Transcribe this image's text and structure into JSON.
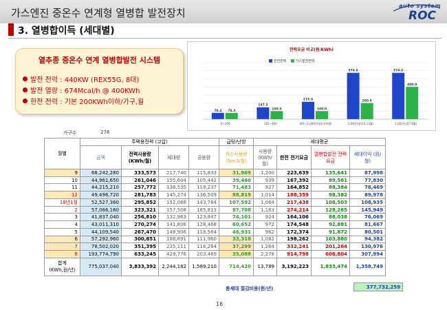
{
  "header": {
    "title": "가스엔진 중온수 연계형 열병합 발전장치",
    "logo_arc": "auto system",
    "logo_text": "ROC",
    "subtitle": "3. 열병합이득 (세대별)"
  },
  "info_box": {
    "title": "열추종 중온수 연계 열병합발전 시스템",
    "lines": [
      "발전 전력 : 440KW (REX55G, 8대)",
      "발전 열량 : 674Mcal/h @ 400KWh",
      "한전 전력 : 기본 200KWh이하/가구,월"
    ]
  },
  "chart_data": {
    "type": "bar",
    "title": "전력요금 비교(원/KWh)",
    "categories": [
      "0~200",
      "201~400",
      "401~1,000(이상)(기타형)",
      "1,001이상(12,12월)",
      "1,001이상(7,8월)"
    ],
    "series": [
      {
        "name": "한전전력",
        "values": [
          78.3,
          147.3,
          215.6,
          574.6,
          574.6
        ],
        "color": "#1f45c8"
      },
      {
        "name": "가스발전전력",
        "values": [
          78.3,
          100.0,
          100.0,
          200.0,
          400.0
        ],
        "color": "#2bb34a"
      }
    ],
    "ylim": [
      0,
      700
    ]
  },
  "table": {
    "households_label": "가구수",
    "households_value": "278",
    "headers": {
      "month": "월별",
      "residential": "주택용전력 (고압)",
      "heating": "급탕/난방",
      "avg": "세대평균",
      "amount": "금액",
      "usage": "전력사용량 (KWh/월)",
      "unit": "세대량",
      "common": "공용량",
      "gas": "가스사용량 (Nm3/월)",
      "use": "사용량 (KWh/월)",
      "kepco": "한전 전기요금",
      "chp": "열병합발전 전력요금",
      "benefit": "세대이익 (원/월)"
    },
    "rows": [
      {
        "m": "9",
        "amt": "68,242,280",
        "use": "333,573",
        "hh": "217,740",
        "com": "115,833",
        "gas": "31,969",
        "avg": "1,200",
        "kepco": "223,639",
        "chp": "135,641",
        "ben": "87,998",
        "hl": true
      },
      {
        "m": "10",
        "amt": "44,961,650",
        "use": "261,046",
        "hh": "155,604",
        "com": "105,442",
        "gas": "39,460",
        "avg": "939",
        "kepco": "167,392",
        "chp": "89,561",
        "ben": "77,830",
        "hl": false
      },
      {
        "m": "11",
        "amt": "44,215,210",
        "use": "257,772",
        "hh": "138,535",
        "com": "119,237",
        "gas": "71,483",
        "avg": "927",
        "kepco": "164,852",
        "chp": "88,384",
        "ben": "76,469",
        "hl": false
      },
      {
        "m": "12",
        "amt": "49,496,720",
        "use": "281,783",
        "hh": "145,274",
        "com": "136,509",
        "gas": "88,819",
        "avg": "1,014",
        "kepco": "188,359",
        "chp": "98,382",
        "ben": "89,978",
        "hl": true
      },
      {
        "m": "18년1월",
        "amt": "52,527,360",
        "use": "295,852",
        "hh": "152,068",
        "com": "143,784",
        "gas": "107,592",
        "avg": "1,064",
        "kepco": "217,438",
        "chp": "108,503",
        "ben": "108,935",
        "hl": false
      },
      {
        "m": "2",
        "amt": "57,066,160",
        "use": "323,321",
        "hh": "157,508",
        "com": "165,813",
        "gas": "87,708",
        "avg": "1,163",
        "kepco": "274,214",
        "chp": "128,265",
        "ben": "145,949",
        "hl": false
      },
      {
        "m": "3",
        "amt": "41,837,040",
        "use": "256,810",
        "hh": "132,963",
        "com": "123,847",
        "gas": "74,101",
        "avg": "924",
        "kepco": "164,106",
        "chp": "88,038",
        "ben": "76,069",
        "hl": false
      },
      {
        "m": "4",
        "amt": "43,011,310",
        "use": "270,274",
        "hh": "141,806",
        "com": "128,468",
        "gas": "60,652",
        "avg": "972",
        "kepco": "174,548",
        "chp": "92,881",
        "ben": "81,667",
        "hl": false
      },
      {
        "m": "5",
        "amt": "44,109,540",
        "use": "267,470",
        "hh": "148,906",
        "com": "118,564",
        "gas": "46,931",
        "avg": "962",
        "kepco": "172,374",
        "chp": "91,872",
        "ben": "80,501",
        "hl": false
      },
      {
        "m": "6",
        "amt": "57,292,960",
        "use": "300,851",
        "hh": "188,891",
        "com": "111,960",
        "gas": "33,318",
        "avg": "1,082",
        "kepco": "198,262",
        "chp": "103,880",
        "ben": "94,382",
        "hl": true
      },
      {
        "m": "7",
        "amt": "78,502,020",
        "use": "351,395",
        "hh": "235,111",
        "com": "116,284",
        "gas": "37,299",
        "avg": "1,264",
        "kepco": "332,241",
        "chp": "201,264",
        "ben": "130,976",
        "hl": true
      },
      {
        "m": "8",
        "amt": "193,774,790",
        "use": "633,245",
        "hh": "429,776",
        "com": "203,469",
        "gas": "35,088",
        "avg": "2,278",
        "kepco": "914,798",
        "chp": "606,804",
        "ben": "307,994",
        "hl": true
      }
    ],
    "total": {
      "label1": "합계",
      "label2": "(KWh,원/년)",
      "amt": "775,037,040",
      "use": "3,833,392",
      "hh": "2,244,182",
      "com": "1,589,210",
      "gas": "714,420",
      "avg": "13,789",
      "kepco": "3,192,223",
      "chp": "1,833,474",
      "ben": "1,358,749"
    },
    "saving_label": "총세대 절감비용(원/년)",
    "saving_value": "377,732,259"
  },
  "page_number": "16"
}
